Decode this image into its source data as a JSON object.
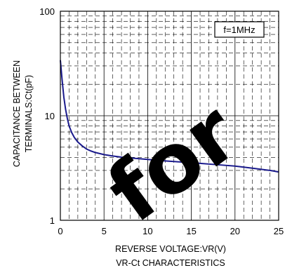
{
  "chart_data": {
    "type": "line",
    "title": "VR-Ct CHARACTERISTICS",
    "xlabel": "REVERSE VOLTAGE:VR(V)",
    "ylabel_line1": "CAPACITANCE BETWEEN",
    "ylabel_line2": "TERMINALS:Ct(pF)",
    "annotation": "f=1MHz",
    "xlim": [
      0,
      25
    ],
    "ylim": [
      1,
      100
    ],
    "yscale": "log",
    "grid": true,
    "x_ticks": [
      0,
      5,
      10,
      15,
      20,
      25
    ],
    "y_ticks": [
      1,
      10,
      100
    ],
    "x_tick_labels": [
      "0",
      "5",
      "10",
      "15",
      "20",
      "25"
    ],
    "y_tick_labels": [
      "1",
      "10",
      "100"
    ],
    "series": [
      {
        "color": "#1a1a8c",
        "x": [
          0,
          0.2,
          0.4,
          0.6,
          0.8,
          1.0,
          1.3,
          1.6,
          2.0,
          2.5,
          3.0,
          3.5,
          4.0,
          5.0,
          6.0,
          7.0,
          8.0,
          10.0,
          12.0,
          14.0,
          16.0,
          18.0,
          20.0,
          22.0,
          24.0,
          25.0
        ],
        "y": [
          34,
          22,
          15,
          11.5,
          9.4,
          8.0,
          6.9,
          6.2,
          5.6,
          5.15,
          4.8,
          4.6,
          4.45,
          4.25,
          4.12,
          4.02,
          3.95,
          3.82,
          3.7,
          3.6,
          3.5,
          3.4,
          3.3,
          3.15,
          3.0,
          2.9
        ]
      }
    ]
  },
  "watermark": {
    "text": "for",
    "color": "#000000"
  }
}
